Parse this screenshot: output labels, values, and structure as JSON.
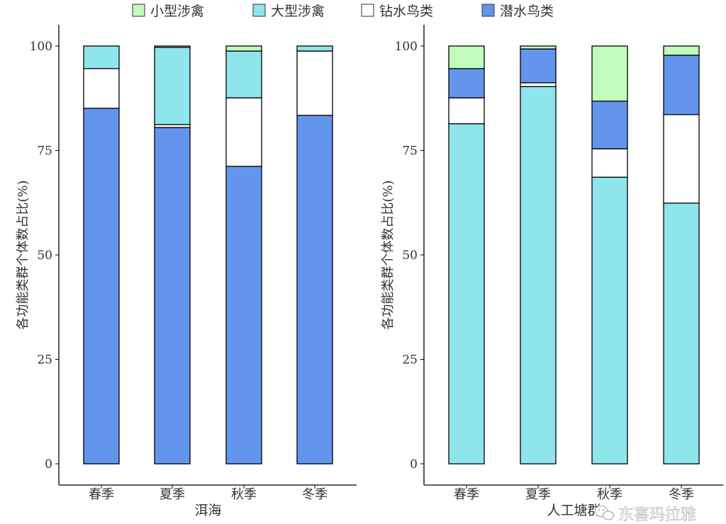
{
  "legend": {
    "items": [
      {
        "name": "小型涉禽",
        "color": "#C1FCBD"
      },
      {
        "name": "大型涉禽",
        "color": "#8FE5EC"
      },
      {
        "name": "钻水鸟类",
        "color": "#FFFFFF"
      },
      {
        "name": "潜水鸟类",
        "color": "#6495EC"
      }
    ],
    "placement": "top"
  },
  "chart_data": [
    {
      "type": "bar",
      "stacked": true,
      "xlabel": "洱海",
      "ylabel": "各功能类群个体数占比(%)",
      "ylim": [
        0,
        100
      ],
      "yticks": [
        "0",
        "25",
        "50",
        "75",
        "100"
      ],
      "categories": [
        "春季",
        "夏季",
        "秋季",
        "冬季"
      ],
      "stack_order": [
        "潜水鸟类",
        "钻水鸟类",
        "大型涉禽",
        "小型涉禽"
      ],
      "series": [
        {
          "name": "潜水鸟类",
          "values": [
            85.1,
            80.5,
            71.2,
            83.4
          ]
        },
        {
          "name": "钻水鸟类",
          "values": [
            9.5,
            0.7,
            16.4,
            15.4
          ]
        },
        {
          "name": "大型涉禽",
          "values": [
            5.4,
            18.5,
            11.2,
            1.2
          ]
        },
        {
          "name": "小型涉禽",
          "values": [
            0,
            0.3,
            1.2,
            0
          ]
        }
      ]
    },
    {
      "type": "bar",
      "stacked": true,
      "xlabel": "人工塘群",
      "ylabel": "各功能类群个体数占比(%)",
      "ylim": [
        0,
        100
      ],
      "yticks": [
        "0",
        "25",
        "50",
        "75",
        "100"
      ],
      "categories": [
        "春季",
        "夏季",
        "秋季",
        "冬季"
      ],
      "stack_order": [
        "大型涉禽",
        "钻水鸟类",
        "潜水鸟类",
        "小型涉禽"
      ],
      "series": [
        {
          "name": "大型涉禽",
          "values": [
            81.4,
            90.3,
            68.6,
            62.4
          ]
        },
        {
          "name": "钻水鸟类",
          "values": [
            6.2,
            0.9,
            6.8,
            21.2
          ]
        },
        {
          "name": "潜水鸟类",
          "values": [
            7.0,
            8.1,
            11.4,
            14.2
          ]
        },
        {
          "name": "小型涉禽",
          "values": [
            5.4,
            0.7,
            13.2,
            2.2
          ]
        }
      ]
    }
  ],
  "watermark": {
    "text": "东喜玛拉雅",
    "icon": "wechat-icon"
  }
}
